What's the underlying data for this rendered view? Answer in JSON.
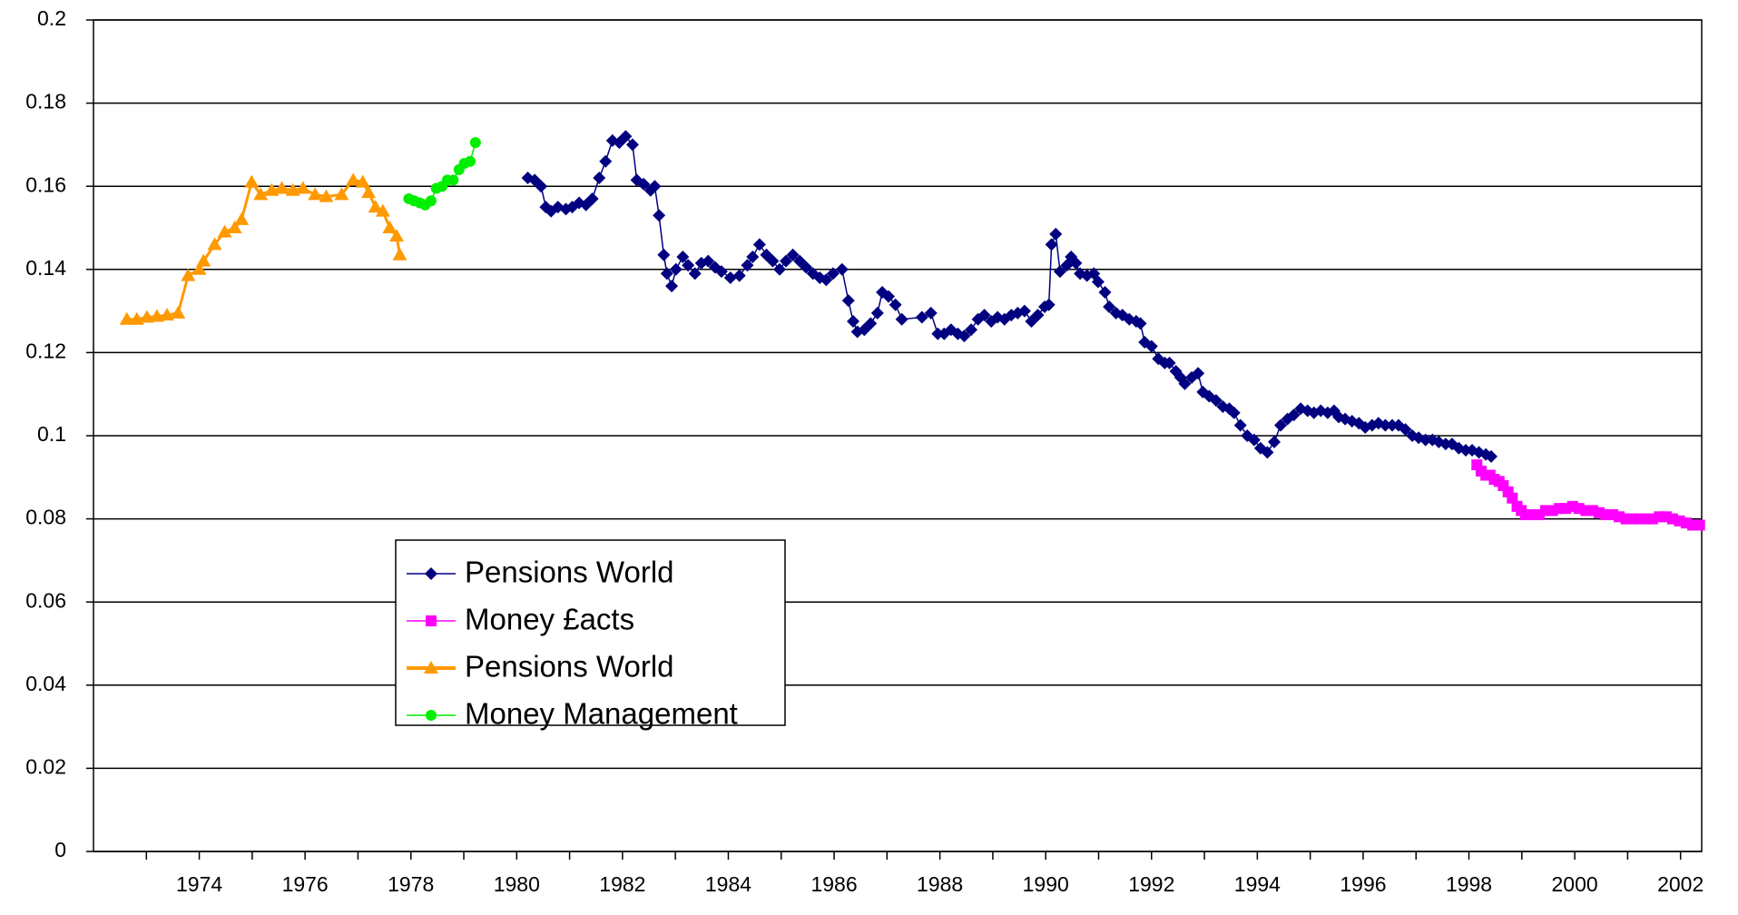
{
  "chart_data": {
    "type": "line",
    "xlim": [
      1972,
      2002.4
    ],
    "xticks": [
      1974,
      1976,
      1978,
      1980,
      1982,
      1984,
      1986,
      1988,
      1990,
      1992,
      1994,
      1996,
      1998,
      2000,
      2002
    ],
    "ylim": [
      0,
      0.2
    ],
    "yticks": [
      0,
      0.02,
      0.04,
      0.06,
      0.08,
      0.1,
      0.12,
      0.14,
      0.16,
      0.18,
      0.2
    ],
    "grid": true,
    "series": [
      {
        "name": "Pensions World",
        "color": "#000080",
        "marker": "diamond",
        "x": [
          1980.21,
          1980.34,
          1980.46,
          1980.55,
          1980.65,
          1980.78,
          1980.93,
          1981.05,
          1981.18,
          1981.31,
          1981.43,
          1981.56,
          1981.68,
          1981.81,
          1981.94,
          1982.06,
          1982.19,
          1982.27,
          1982.4,
          1982.53,
          1982.61,
          1982.69,
          1982.78,
          1982.84,
          1982.93,
          1983.01,
          1983.14,
          1983.24,
          1983.37,
          1983.49,
          1983.62,
          1983.75,
          1983.87,
          1984.04,
          1984.21,
          1984.36,
          1984.46,
          1984.59,
          1984.72,
          1984.84,
          1984.97,
          1985.09,
          1985.22,
          1985.35,
          1985.47,
          1985.6,
          1985.73,
          1985.85,
          1985.98,
          1986.15,
          1986.27,
          1986.36,
          1986.44,
          1986.57,
          1986.69,
          1986.82,
          1986.91,
          1987.03,
          1987.16,
          1987.28,
          1987.66,
          1987.83,
          1987.96,
          1988.08,
          1988.21,
          1988.34,
          1988.46,
          1988.59,
          1988.72,
          1988.84,
          1988.97,
          1989.09,
          1989.22,
          1989.35,
          1989.47,
          1989.6,
          1989.73,
          1989.85,
          1989.98,
          1990.06,
          1990.11,
          1990.19,
          1990.27,
          1990.4,
          1990.48,
          1990.57,
          1990.65,
          1990.78,
          1990.91,
          1990.99,
          1991.12,
          1991.2,
          1991.33,
          1991.45,
          1991.58,
          1991.71,
          1991.79,
          1991.87,
          1992.0,
          1992.13,
          1992.25,
          1992.34,
          1992.46,
          1992.55,
          1992.63,
          1992.76,
          1992.88,
          1992.97,
          1993.09,
          1993.22,
          1993.35,
          1993.47,
          1993.56,
          1993.68,
          1993.81,
          1993.94,
          1994.06,
          1994.19,
          1994.32,
          1994.44,
          1994.57,
          1994.69,
          1994.82,
          1994.95,
          1995.07,
          1995.2,
          1995.33,
          1995.45,
          1995.54,
          1995.66,
          1995.79,
          1995.92,
          1996.04,
          1996.17,
          1996.29,
          1996.42,
          1996.55,
          1996.67,
          1996.8,
          1996.93,
          1997.05,
          1997.18,
          1997.31,
          1997.43,
          1997.56,
          1997.68,
          1997.81,
          1997.94,
          1998.06,
          1998.19,
          1998.32,
          1998.42
        ],
        "values": [
          0.162,
          0.1615,
          0.16,
          0.155,
          0.154,
          0.155,
          0.1545,
          0.155,
          0.156,
          0.1555,
          0.157,
          0.162,
          0.166,
          0.171,
          0.1705,
          0.172,
          0.17,
          0.1615,
          0.1605,
          0.159,
          0.16,
          0.153,
          0.1435,
          0.139,
          0.136,
          0.14,
          0.143,
          0.141,
          0.139,
          0.1415,
          0.142,
          0.1405,
          0.1395,
          0.138,
          0.1385,
          0.141,
          0.143,
          0.146,
          0.1435,
          0.142,
          0.14,
          0.142,
          0.1435,
          0.142,
          0.1405,
          0.139,
          0.138,
          0.1375,
          0.139,
          0.14,
          0.1325,
          0.1275,
          0.125,
          0.1255,
          0.127,
          0.1295,
          0.1345,
          0.1335,
          0.1315,
          0.128,
          0.1285,
          0.1295,
          0.1245,
          0.1245,
          0.1255,
          0.1245,
          0.124,
          0.1255,
          0.128,
          0.129,
          0.1275,
          0.1285,
          0.128,
          0.129,
          0.1295,
          0.13,
          0.1275,
          0.129,
          0.131,
          0.1315,
          0.146,
          0.1485,
          0.1395,
          0.141,
          0.143,
          0.1415,
          0.139,
          0.1385,
          0.139,
          0.137,
          0.1345,
          0.131,
          0.1295,
          0.129,
          0.128,
          0.1275,
          0.127,
          0.1225,
          0.1215,
          0.1185,
          0.1175,
          0.1175,
          0.1155,
          0.114,
          0.1125,
          0.114,
          0.115,
          0.1105,
          0.1095,
          0.1085,
          0.107,
          0.1065,
          0.1055,
          0.1025,
          0.1,
          0.099,
          0.097,
          0.096,
          0.0985,
          0.1025,
          0.104,
          0.105,
          0.1065,
          0.106,
          0.1055,
          0.106,
          0.1055,
          0.106,
          0.1045,
          0.104,
          0.1035,
          0.103,
          0.102,
          0.1025,
          0.103,
          0.1025,
          0.1025,
          0.1025,
          0.1015,
          0.1,
          0.0995,
          0.099,
          0.099,
          0.0985,
          0.098,
          0.098,
          0.097,
          0.0965,
          0.0965,
          0.096,
          0.0955,
          0.095
        ]
      },
      {
        "name": "Money £acts",
        "color": "#ff00ff",
        "marker": "square",
        "x": [
          1998.15,
          1998.23,
          1998.32,
          1998.4,
          1998.48,
          1998.57,
          1998.65,
          1998.74,
          1998.82,
          1998.91,
          1998.99,
          1999.07,
          1999.2,
          1999.33,
          1999.45,
          1999.58,
          1999.71,
          1999.83,
          1999.96,
          2000.08,
          2000.21,
          2000.34,
          2000.46,
          2000.59,
          2000.72,
          2000.84,
          2000.97,
          2001.09,
          2001.22,
          2001.35,
          2001.47,
          2001.6,
          2001.73,
          2001.85,
          2001.98,
          2002.11,
          2002.23,
          2002.36
        ],
        "values": [
          0.093,
          0.0915,
          0.0905,
          0.0905,
          0.0895,
          0.089,
          0.088,
          0.0865,
          0.085,
          0.083,
          0.082,
          0.081,
          0.081,
          0.081,
          0.082,
          0.082,
          0.0825,
          0.0825,
          0.083,
          0.0825,
          0.082,
          0.082,
          0.0815,
          0.081,
          0.081,
          0.0805,
          0.08,
          0.08,
          0.08,
          0.08,
          0.08,
          0.0805,
          0.0805,
          0.08,
          0.0795,
          0.079,
          0.0785,
          0.0785
        ]
      },
      {
        "name": "Pensions World",
        "color": "#ff9900",
        "marker": "triangle",
        "x": [
          1972.63,
          1972.82,
          1973.01,
          1973.2,
          1973.39,
          1973.6,
          1973.79,
          1974.0,
          1974.08,
          1974.29,
          1974.48,
          1974.67,
          1974.8,
          1974.99,
          1975.16,
          1975.37,
          1975.56,
          1975.77,
          1975.96,
          1976.19,
          1976.4,
          1976.69,
          1976.91,
          1977.09,
          1977.2,
          1977.33,
          1977.47,
          1977.6,
          1977.73,
          1977.79
        ],
        "values": [
          0.128,
          0.128,
          0.1285,
          0.1287,
          0.129,
          0.1295,
          0.1385,
          0.14,
          0.142,
          0.146,
          0.149,
          0.15,
          0.152,
          0.161,
          0.158,
          0.159,
          0.1595,
          0.159,
          0.1595,
          0.158,
          0.1575,
          0.158,
          0.1615,
          0.161,
          0.1585,
          0.155,
          0.154,
          0.15,
          0.148,
          0.1435
        ]
      },
      {
        "name": "Money Management",
        "color": "#00ee00",
        "marker": "circle",
        "x": [
          1977.96,
          1978.06,
          1978.17,
          1978.27,
          1978.38,
          1978.48,
          1978.59,
          1978.69,
          1978.8,
          1978.91,
          1979.01,
          1979.12,
          1979.22
        ],
        "values": [
          0.157,
          0.1565,
          0.156,
          0.1555,
          0.1565,
          0.1595,
          0.16,
          0.1615,
          0.1615,
          0.164,
          0.1655,
          0.166,
          0.1705
        ]
      }
    ]
  }
}
